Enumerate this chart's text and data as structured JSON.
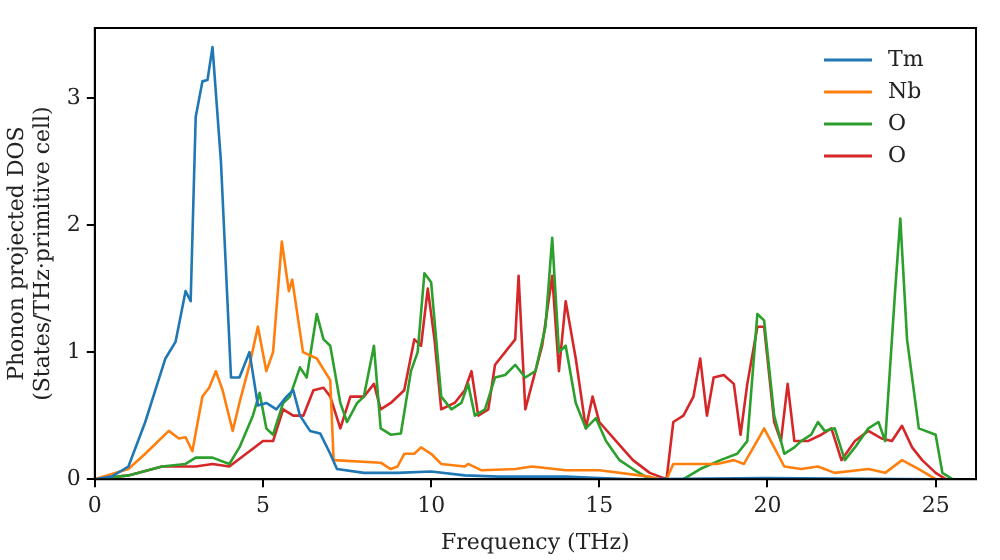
{
  "chart_data": {
    "type": "line",
    "xlabel": "Frequency (THz)",
    "ylabel": "Phonon projected DOS (States/THz·primitive cell)",
    "xlim": [
      0,
      26.2
    ],
    "ylim": [
      0,
      3.55
    ],
    "xticks": [
      0,
      5,
      10,
      15,
      20,
      25
    ],
    "yticks": [
      0,
      1,
      2,
      3
    ],
    "grid": false,
    "legend": "top right",
    "marker": "none",
    "line_style": "solid",
    "series": [
      {
        "name": "Tm",
        "color": "#1f77b4",
        "x": [
          0,
          0.5,
          1,
          1.5,
          1.8,
          2.1,
          2.4,
          2.7,
          2.85,
          3.0,
          3.2,
          3.35,
          3.5,
          3.75,
          4.05,
          4.3,
          4.6,
          4.85,
          5.1,
          5.4,
          5.7,
          5.9,
          6.1,
          6.4,
          6.7,
          7.0,
          7.2,
          8,
          9,
          10,
          11,
          12,
          14,
          15,
          16,
          20,
          25
        ],
        "values": [
          0,
          0.02,
          0.1,
          0.45,
          0.7,
          0.95,
          1.08,
          1.48,
          1.4,
          2.85,
          3.13,
          3.14,
          3.4,
          2.5,
          0.8,
          0.8,
          1.0,
          0.58,
          0.6,
          0.55,
          0.65,
          0.7,
          0.5,
          0.38,
          0.36,
          0.2,
          0.08,
          0.05,
          0.05,
          0.06,
          0.03,
          0.02,
          0.02,
          0.01,
          0,
          0.01,
          0
        ]
      },
      {
        "name": "Nb",
        "color": "#ff7f0e",
        "x": [
          0,
          1,
          1.5,
          2.2,
          2.5,
          2.7,
          2.9,
          3.2,
          3.4,
          3.6,
          3.8,
          4.1,
          4.3,
          4.6,
          4.85,
          5.1,
          5.3,
          5.56,
          5.77,
          5.87,
          6.19,
          6.6,
          7.0,
          7.1,
          8.5,
          8.8,
          9.0,
          9.2,
          9.5,
          9.7,
          10,
          10.3,
          11,
          11.1,
          11.5,
          12.5,
          13,
          14,
          15,
          16.5,
          16.8,
          17.0,
          17.2,
          18.5,
          19,
          19.3,
          19.8,
          19.9,
          20.2,
          20.5,
          21,
          21.5,
          22,
          23,
          23.5,
          24,
          24.5,
          25
        ],
        "values": [
          0,
          0.08,
          0.2,
          0.38,
          0.32,
          0.33,
          0.22,
          0.65,
          0.72,
          0.85,
          0.7,
          0.38,
          0.6,
          0.9,
          1.2,
          0.85,
          1.0,
          1.87,
          1.48,
          1.57,
          1.0,
          0.95,
          0.78,
          0.15,
          0.13,
          0.08,
          0.1,
          0.2,
          0.2,
          0.25,
          0.2,
          0.12,
          0.1,
          0.12,
          0.07,
          0.08,
          0.1,
          0.07,
          0.07,
          0.02,
          0,
          0,
          0.12,
          0.12,
          0.15,
          0.12,
          0.35,
          0.4,
          0.25,
          0.1,
          0.08,
          0.1,
          0.05,
          0.08,
          0.05,
          0.15,
          0.08,
          0
        ]
      },
      {
        "name": "O",
        "color": "#2ca02c",
        "x": [
          0,
          1,
          2,
          2.7,
          3,
          3.5,
          4,
          4.3,
          4.7,
          4.9,
          5.1,
          5.3,
          5.6,
          5.8,
          6.1,
          6.3,
          6.6,
          6.8,
          7.0,
          7.3,
          7.5,
          7.8,
          8.0,
          8.3,
          8.5,
          8.8,
          9.1,
          9.4,
          9.6,
          9.8,
          10.0,
          10.3,
          10.6,
          10.9,
          11.1,
          11.3,
          11.6,
          11.9,
          12.2,
          12.5,
          12.8,
          13.1,
          13.4,
          13.6,
          13.8,
          14.0,
          14.3,
          14.6,
          14.9,
          15.2,
          15.6,
          16,
          16.5,
          17.5,
          18,
          18.6,
          19.1,
          19.4,
          19.7,
          19.9,
          20.2,
          20.5,
          20.8,
          21,
          21.3,
          21.5,
          21.7,
          22,
          22.3,
          22.6,
          23,
          23.3,
          23.5,
          23.65,
          23.8,
          23.95,
          24.15,
          24.5,
          25.0,
          25.2,
          25.5
        ],
        "values": [
          0,
          0.03,
          0.1,
          0.12,
          0.17,
          0.17,
          0.12,
          0.25,
          0.5,
          0.68,
          0.4,
          0.35,
          0.6,
          0.65,
          0.88,
          0.8,
          1.3,
          1.1,
          1.05,
          0.6,
          0.45,
          0.6,
          0.65,
          1.05,
          0.4,
          0.35,
          0.36,
          0.85,
          1.0,
          1.62,
          1.55,
          0.65,
          0.55,
          0.6,
          0.75,
          0.5,
          0.55,
          0.8,
          0.82,
          0.9,
          0.8,
          0.85,
          1.2,
          1.9,
          1.0,
          1.05,
          0.6,
          0.4,
          0.48,
          0.3,
          0.15,
          0.08,
          0,
          0,
          0.08,
          0.15,
          0.2,
          0.3,
          1.3,
          1.25,
          0.5,
          0.2,
          0.25,
          0.3,
          0.35,
          0.45,
          0.38,
          0.4,
          0.15,
          0.25,
          0.4,
          0.45,
          0.3,
          0.9,
          1.5,
          2.05,
          1.1,
          0.4,
          0.35,
          0.05,
          0
        ]
      },
      {
        "name": "O",
        "color": "#d62728",
        "x": [
          0,
          1,
          2,
          3,
          3.5,
          4,
          4.5,
          5,
          5.3,
          5.6,
          5.9,
          6.2,
          6.5,
          6.8,
          7,
          7.3,
          7.6,
          8.0,
          8.3,
          8.5,
          8.8,
          9.2,
          9.5,
          9.7,
          9.9,
          10.1,
          10.3,
          10.7,
          11,
          11.2,
          11.4,
          11.7,
          11.9,
          12.2,
          12.5,
          12.6,
          12.8,
          13.0,
          13.3,
          13.6,
          13.8,
          14.0,
          14.3,
          14.6,
          14.8,
          15.0,
          15.5,
          16.0,
          16.5,
          17,
          17.2,
          17.5,
          17.8,
          18.0,
          18.2,
          18.4,
          18.7,
          19.0,
          19.2,
          19.4,
          19.7,
          19.9,
          20.2,
          20.4,
          20.6,
          20.8,
          21.2,
          21.6,
          21.9,
          22.2,
          22.6,
          23,
          23.4,
          23.7,
          24,
          24.3,
          24.6,
          25,
          25.3
        ],
        "values": [
          0,
          0.03,
          0.1,
          0.1,
          0.12,
          0.1,
          0.2,
          0.3,
          0.3,
          0.55,
          0.5,
          0.5,
          0.7,
          0.72,
          0.65,
          0.4,
          0.65,
          0.65,
          0.75,
          0.55,
          0.6,
          0.7,
          1.1,
          1.05,
          1.5,
          1.1,
          0.55,
          0.6,
          0.7,
          0.85,
          0.5,
          0.55,
          0.9,
          1.0,
          1.1,
          1.6,
          0.55,
          0.75,
          1.05,
          1.6,
          0.85,
          1.4,
          0.95,
          0.4,
          0.65,
          0.45,
          0.3,
          0.15,
          0.05,
          0,
          0.45,
          0.5,
          0.65,
          0.95,
          0.5,
          0.8,
          0.82,
          0.75,
          0.35,
          0.75,
          1.2,
          1.2,
          0.45,
          0.3,
          0.75,
          0.3,
          0.3,
          0.35,
          0.4,
          0.15,
          0.3,
          0.38,
          0.32,
          0.3,
          0.42,
          0.25,
          0.15,
          0.05,
          0
        ]
      }
    ]
  }
}
